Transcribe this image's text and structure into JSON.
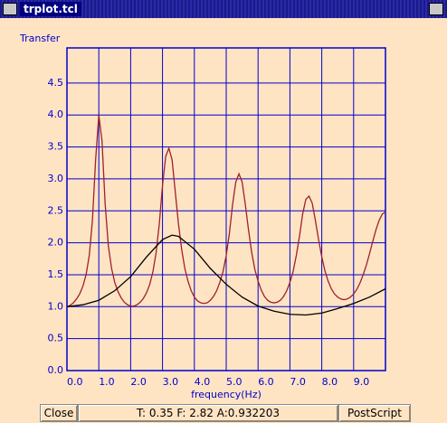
{
  "window": {
    "title": "trplot.tcl"
  },
  "chart_data": {
    "type": "line",
    "ylabel": "Transfer",
    "xlabel": "frequency(Hz)",
    "xlim": [
      0,
      10
    ],
    "ylim": [
      0,
      5.05
    ],
    "xticks": [
      {
        "value": 0,
        "label": "0.0"
      },
      {
        "value": 1,
        "label": "1.0"
      },
      {
        "value": 2,
        "label": "2.0"
      },
      {
        "value": 3,
        "label": "3.0"
      },
      {
        "value": 4,
        "label": "4.0"
      },
      {
        "value": 5,
        "label": "5.0"
      },
      {
        "value": 6,
        "label": "6.0"
      },
      {
        "value": 7,
        "label": "7.0"
      },
      {
        "value": 8,
        "label": "8.0"
      },
      {
        "value": 9,
        "label": "9.0"
      }
    ],
    "yticks": [
      {
        "value": 0,
        "label": "0.0"
      },
      {
        "value": 0.5,
        "label": "0.5"
      },
      {
        "value": 1,
        "label": "1.0"
      },
      {
        "value": 1.5,
        "label": "1.5"
      },
      {
        "value": 2,
        "label": "2.0"
      },
      {
        "value": 2.5,
        "label": "2.5"
      },
      {
        "value": 3,
        "label": "3.0"
      },
      {
        "value": 3.5,
        "label": "3.5"
      },
      {
        "value": 4,
        "label": "4.0"
      },
      {
        "value": 4.5,
        "label": "4.5"
      }
    ],
    "grid": true,
    "grid_color": "#0000cc",
    "series": [
      {
        "color": "#a0202a",
        "x": [
          0,
          0.1,
          0.2,
          0.3,
          0.4,
          0.5,
          0.6,
          0.7,
          0.8,
          0.9,
          1,
          1.1,
          1.2,
          1.3,
          1.4,
          1.5,
          1.6,
          1.7,
          1.8,
          1.9,
          2,
          2.1,
          2.2,
          2.3,
          2.4,
          2.5,
          2.6,
          2.7,
          2.8,
          2.9,
          3,
          3.1,
          3.2,
          3.3,
          3.4,
          3.5,
          3.6,
          3.7,
          3.8,
          3.9,
          4,
          4.1,
          4.2,
          4.3,
          4.4,
          4.5,
          4.6,
          4.7,
          4.8,
          4.9,
          5,
          5.1,
          5.2,
          5.3,
          5.4,
          5.5,
          5.6,
          5.7,
          5.8,
          5.9,
          6,
          6.1,
          6.2,
          6.3,
          6.4,
          6.5,
          6.6,
          6.7,
          6.8,
          6.9,
          7,
          7.1,
          7.2,
          7.3,
          7.4,
          7.5,
          7.6,
          7.7,
          7.8,
          7.9,
          8,
          8.1,
          8.2,
          8.3,
          8.4,
          8.5,
          8.6,
          8.7,
          8.8,
          8.9,
          9,
          9.1,
          9.2,
          9.3,
          9.4,
          9.5,
          9.6,
          9.7,
          9.8,
          9.9,
          10
        ],
        "values": [
          1.0,
          1.02,
          1.06,
          1.12,
          1.2,
          1.32,
          1.5,
          1.8,
          2.35,
          3.3,
          4.0,
          3.6,
          2.6,
          1.95,
          1.6,
          1.38,
          1.24,
          1.14,
          1.07,
          1.03,
          1.01,
          1.01,
          1.03,
          1.07,
          1.13,
          1.22,
          1.35,
          1.55,
          1.85,
          2.3,
          2.9,
          3.35,
          3.48,
          3.3,
          2.8,
          2.3,
          1.9,
          1.6,
          1.4,
          1.25,
          1.15,
          1.09,
          1.06,
          1.05,
          1.06,
          1.1,
          1.16,
          1.25,
          1.38,
          1.55,
          1.8,
          2.15,
          2.6,
          2.95,
          3.08,
          2.95,
          2.6,
          2.2,
          1.85,
          1.58,
          1.4,
          1.26,
          1.16,
          1.1,
          1.07,
          1.06,
          1.07,
          1.1,
          1.16,
          1.25,
          1.38,
          1.55,
          1.8,
          2.1,
          2.45,
          2.68,
          2.73,
          2.62,
          2.35,
          2.05,
          1.78,
          1.56,
          1.4,
          1.28,
          1.2,
          1.15,
          1.12,
          1.11,
          1.12,
          1.15,
          1.2,
          1.27,
          1.37,
          1.5,
          1.65,
          1.83,
          2.02,
          2.2,
          2.35,
          2.45,
          2.48
        ]
      },
      {
        "color": "#000000",
        "x": [
          0,
          0.5,
          1,
          1.5,
          2,
          2.5,
          3,
          3.3,
          3.5,
          4,
          4.5,
          5,
          5.5,
          6,
          6.5,
          7,
          7.5,
          8,
          8.5,
          9,
          9.5,
          10
        ],
        "values": [
          1.0,
          1.03,
          1.1,
          1.25,
          1.47,
          1.78,
          2.05,
          2.12,
          2.1,
          1.9,
          1.6,
          1.35,
          1.15,
          1.01,
          0.93,
          0.88,
          0.87,
          0.9,
          0.97,
          1.05,
          1.15,
          1.28
        ]
      }
    ]
  },
  "buttons": {
    "close": "Close",
    "status": "T: 0.35 F: 2.82 A:0.932203",
    "postscript": "PostScript"
  }
}
